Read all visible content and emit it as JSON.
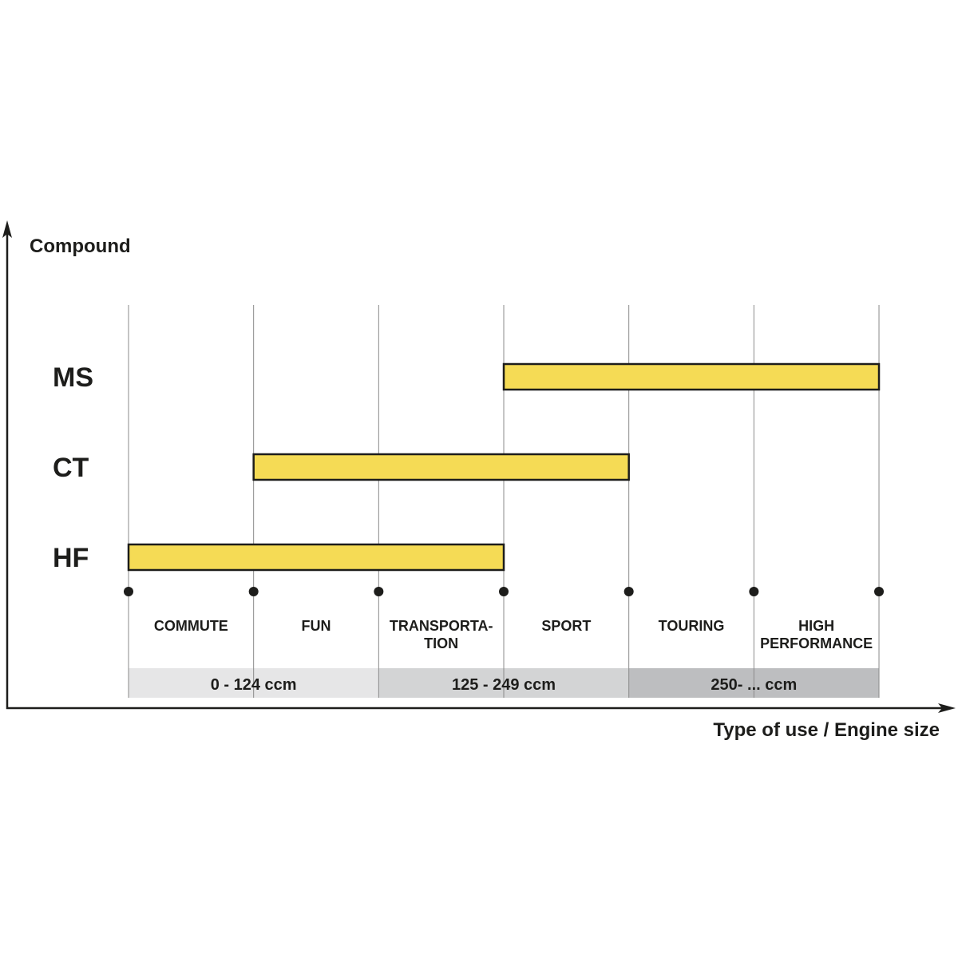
{
  "chart_data": {
    "type": "bar",
    "ylabel": "Compound",
    "xlabel": "Type of use / Engine size",
    "categories": [
      "COMMUTE",
      "FUN",
      "TRANSPORTA-\nTION",
      "SPORT",
      "TOURING",
      "HIGH\nPERFORMANCE"
    ],
    "series": [
      {
        "name": "MS",
        "start": 3,
        "end": 6
      },
      {
        "name": "CT",
        "start": 1,
        "end": 4
      },
      {
        "name": "HF",
        "start": 0,
        "end": 3
      }
    ],
    "engine_ranges": [
      {
        "label": "0 - 124 ccm",
        "start": 0,
        "end": 2,
        "color": "#e6e6e7"
      },
      {
        "label": "125 - 249 ccm",
        "start": 2,
        "end": 4,
        "color": "#d3d4d5"
      },
      {
        "label": "250- ... ccm",
        "start": 4,
        "end": 6,
        "color": "#bdbec0"
      }
    ],
    "bar_color": "#f5db55",
    "grid": true
  }
}
